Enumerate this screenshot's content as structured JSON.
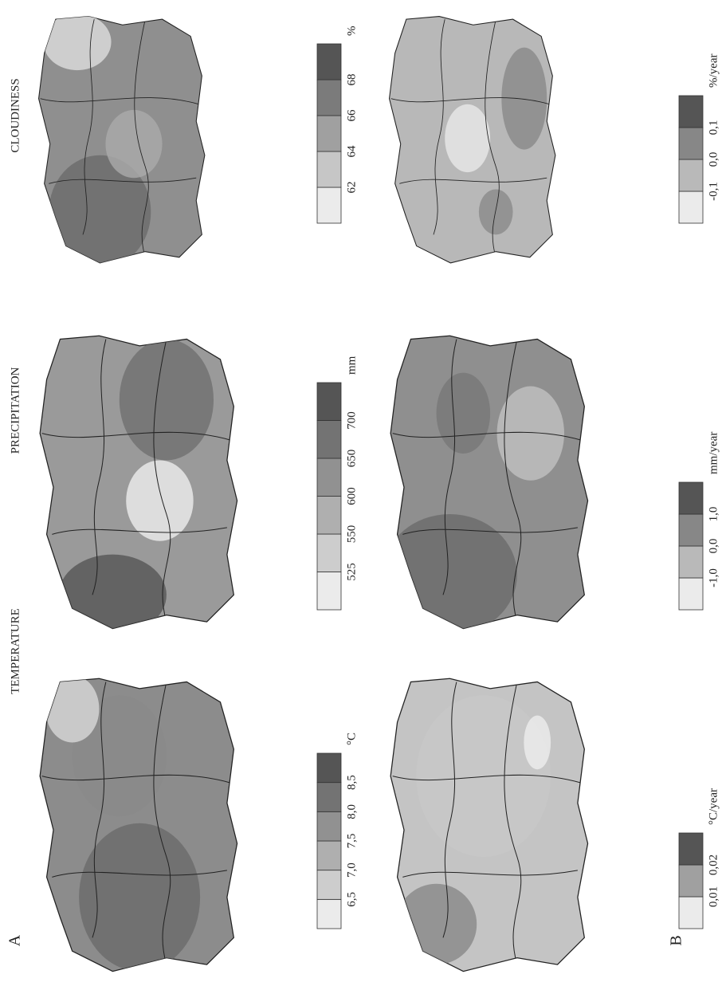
{
  "panels": [
    {
      "label": "A",
      "maps": [
        {
          "title": "TEMPERATURE",
          "legend": {
            "labels": [
              "6,5",
              "7,0",
              "7,5",
              "8,0",
              "8,5"
            ],
            "unit": "°C"
          }
        },
        {
          "title": "PRECIPITATION",
          "legend": {
            "labels": [
              "525",
              "550",
              "600",
              "650",
              "700"
            ],
            "unit": "mm"
          }
        },
        {
          "title": "CLOUDINESS",
          "legend": {
            "labels": [
              "62",
              "64",
              "66",
              "68"
            ],
            "unit": "%"
          }
        }
      ]
    },
    {
      "label": "B",
      "maps": [
        {
          "legend": {
            "labels": [
              "0,01",
              "0,02"
            ],
            "unit": "°C/year"
          }
        },
        {
          "legend": {
            "labels": [
              "-1,0",
              "0,0",
              "1,0"
            ],
            "unit": "mm/year"
          }
        },
        {
          "legend": {
            "labels": [
              "-0,1",
              "0,0",
              "0,1"
            ],
            "unit": "%/year"
          }
        }
      ]
    }
  ]
}
